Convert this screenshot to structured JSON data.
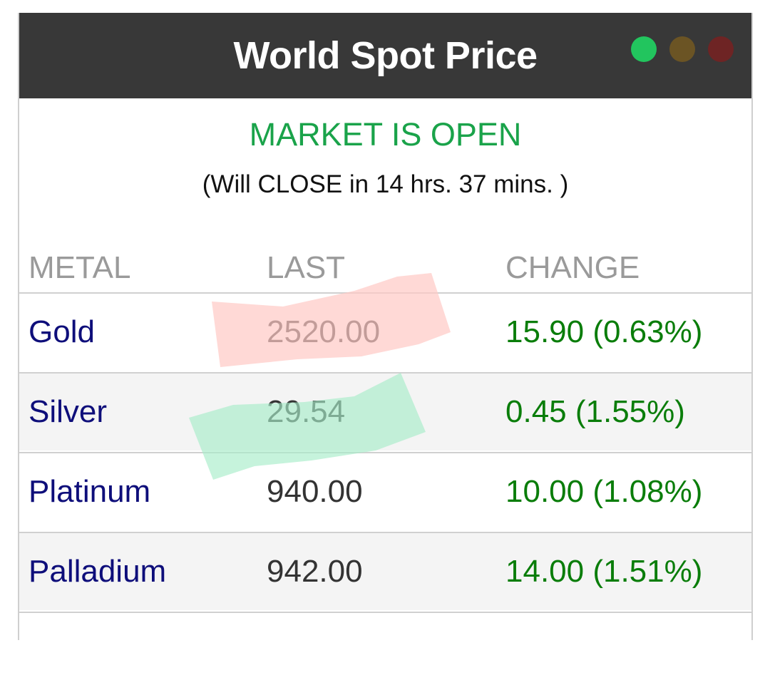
{
  "header": {
    "title": "World Spot Price",
    "dots": [
      {
        "name": "status-dot-green",
        "color": "#22c55e"
      },
      {
        "name": "status-dot-amber",
        "color": "#6b5424"
      },
      {
        "name": "status-dot-red",
        "color": "#6e2424"
      }
    ]
  },
  "market": {
    "status": "MARKET IS OPEN",
    "status_color": "#1aa34a",
    "countdown": "(Will CLOSE in 14 hrs. 37 mins. )"
  },
  "table": {
    "columns": [
      "METAL",
      "LAST",
      "CHANGE"
    ],
    "change_color": "#0a7d0a",
    "rows": [
      {
        "metal": "Gold",
        "last": "2520.00",
        "change": "15.90 (0.63%)"
      },
      {
        "metal": "Silver",
        "last": "29.54",
        "change": "0.45 (1.55%)"
      },
      {
        "metal": "Platinum",
        "last": "940.00",
        "change": "10.00 (1.08%)"
      },
      {
        "metal": "Palladium",
        "last": "942.00",
        "change": "14.00 (1.51%)"
      }
    ]
  },
  "highlights": {
    "gold_color": "#ffc9c4",
    "silver_color": "#a8ecc9"
  }
}
